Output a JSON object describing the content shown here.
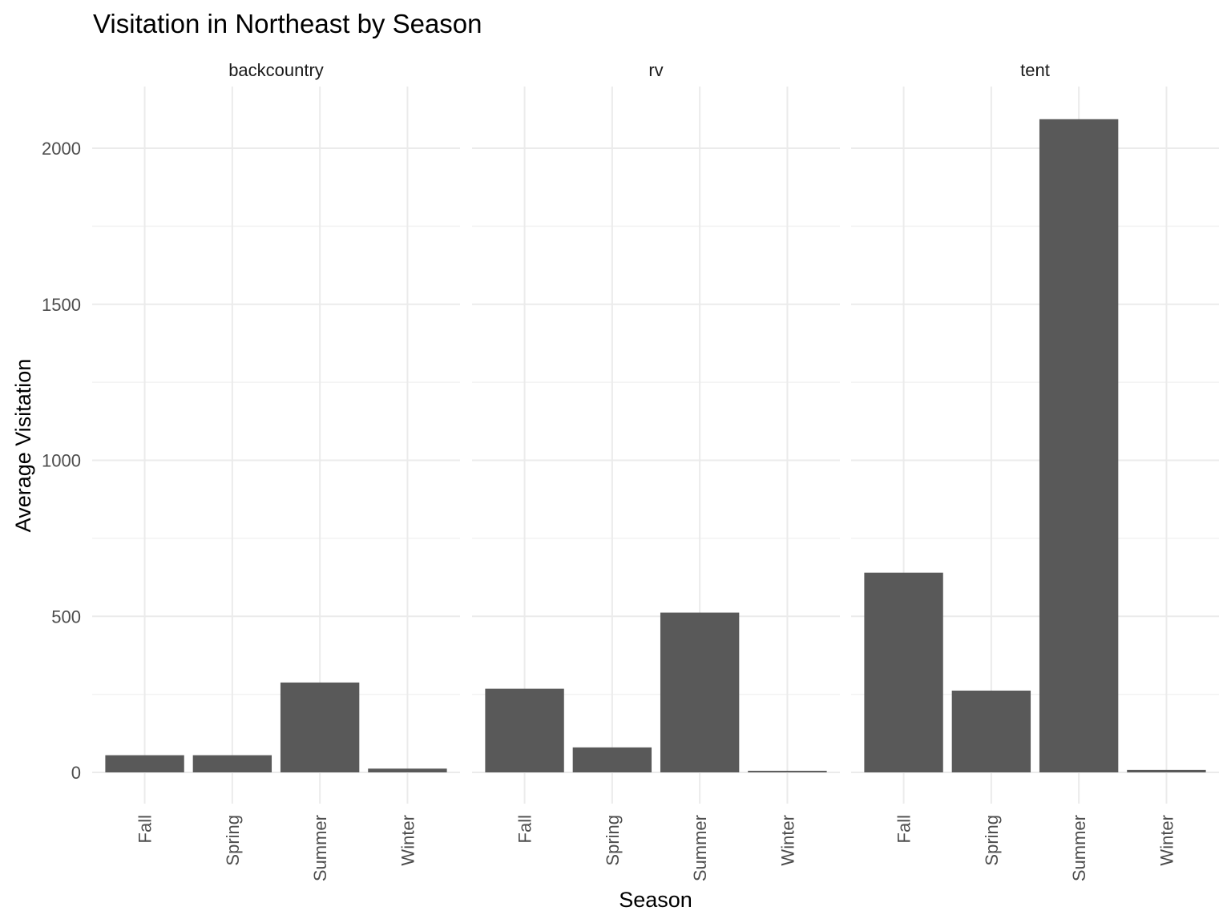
{
  "chart_data": {
    "type": "bar",
    "title": "Visitation in Northeast by Season",
    "xlabel": "Season",
    "ylabel": "Average Visitation",
    "categories": [
      "Fall",
      "Spring",
      "Summer",
      "Winter"
    ],
    "facets": [
      {
        "name": "backcountry",
        "values": [
          55,
          55,
          288,
          12
        ]
      },
      {
        "name": "rv",
        "values": [
          268,
          80,
          512,
          5
        ]
      },
      {
        "name": "tent",
        "values": [
          640,
          262,
          2093,
          8
        ]
      }
    ],
    "ylim": [
      0,
      2200
    ],
    "yticks": [
      0,
      500,
      1000,
      1500,
      2000
    ],
    "grid": true,
    "bar_color": "#595959",
    "legend": "none"
  }
}
